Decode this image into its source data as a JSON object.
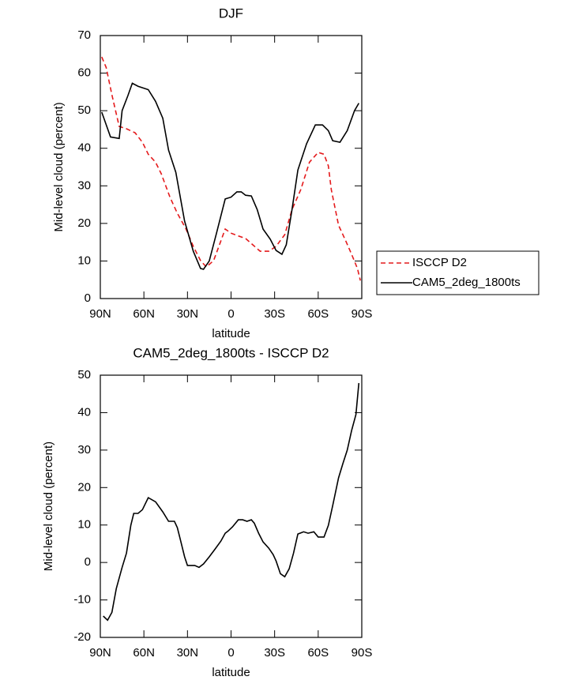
{
  "chart_data": [
    {
      "type": "line",
      "title": "DJF",
      "x_label": "latitude",
      "y_label": "Mid-level cloud (percent)",
      "xlim": [
        90,
        -90
      ],
      "ylim": [
        0,
        70
      ],
      "xticks": [
        {
          "value": 90,
          "label": "90N"
        },
        {
          "value": 60,
          "label": "60N"
        },
        {
          "value": 30,
          "label": "30N"
        },
        0,
        {
          "value": -30,
          "label": "30S"
        },
        {
          "value": -60,
          "label": "60S"
        },
        {
          "value": -90,
          "label": "90S"
        }
      ],
      "yticks": [
        0,
        10,
        20,
        30,
        40,
        50,
        60,
        70
      ],
      "legend": "outside-right",
      "series": [
        {
          "name": "ISCCP D2",
          "color": "#e41a1c",
          "linestyle": "dashed",
          "x": [
            89,
            86,
            82,
            77,
            72,
            66,
            61,
            57,
            52,
            48,
            42,
            37,
            31,
            26,
            21,
            17,
            12,
            8,
            4,
            0,
            -4,
            -10,
            -15,
            -20,
            -26,
            -31,
            -37,
            -42,
            -48,
            -54,
            -60,
            -64,
            -67,
            -69,
            -74,
            -79,
            -83,
            -87,
            -89
          ],
          "values": [
            64.3,
            61.5,
            54.2,
            45.8,
            45.2,
            44.1,
            41.6,
            38.4,
            36.3,
            33.2,
            26.9,
            22.7,
            18.5,
            13.9,
            10.1,
            8.4,
            10.1,
            14.3,
            18.5,
            17.4,
            16.8,
            16,
            14.3,
            12.6,
            12.6,
            13.9,
            17,
            23.7,
            29,
            36.3,
            38.9,
            38.4,
            35.3,
            29,
            19.5,
            15.3,
            11.8,
            8,
            4.8
          ]
        },
        {
          "name": "CAM5_2deg_1800ts",
          "color": "#000000",
          "linestyle": "solid",
          "x": [
            89,
            83,
            77,
            75,
            71,
            68,
            64,
            57,
            52,
            47,
            43,
            38,
            32,
            26,
            21,
            19,
            15,
            10,
            4,
            0,
            -4,
            -7,
            -10,
            -14,
            -18,
            -22,
            -27,
            -31,
            -35,
            -38,
            -42,
            -46,
            -52,
            -58,
            -63,
            -67,
            -70,
            -75,
            -80,
            -85,
            -88
          ],
          "values": [
            49.6,
            43,
            42.6,
            50,
            54,
            57.3,
            56.5,
            55.6,
            52.5,
            48,
            39.5,
            33.6,
            20.6,
            12.6,
            8,
            7.8,
            10,
            17.4,
            26.5,
            27,
            28.4,
            28.4,
            27.5,
            27.3,
            23.7,
            18.5,
            15.8,
            12.8,
            11.8,
            14.3,
            23.7,
            34.2,
            41.2,
            46.2,
            46.2,
            44.7,
            42,
            41.6,
            44.7,
            50,
            52
          ]
        }
      ]
    },
    {
      "type": "line",
      "title": "CAM5_2deg_1800ts - ISCCP D2",
      "x_label": "latitude",
      "y_label": "Mid-level cloud (percent)",
      "xlim": [
        90,
        -90
      ],
      "ylim": [
        -20,
        50
      ],
      "xticks": [
        {
          "value": 90,
          "label": "90N"
        },
        {
          "value": 60,
          "label": "60N"
        },
        {
          "value": 30,
          "label": "30N"
        },
        0,
        {
          "value": -30,
          "label": "30S"
        },
        {
          "value": -60,
          "label": "60S"
        },
        {
          "value": -90,
          "label": "90S"
        }
      ],
      "yticks": [
        -20,
        -10,
        0,
        10,
        20,
        30,
        40,
        50
      ],
      "series": [
        {
          "color": "#000000",
          "linestyle": "solid",
          "x": [
            88,
            85,
            82,
            79,
            75,
            72,
            69,
            67,
            64,
            61,
            57,
            52,
            47,
            43,
            39,
            37,
            35,
            32,
            30,
            25,
            22,
            19,
            15,
            11,
            7,
            4,
            2,
            -1,
            -5,
            -8,
            -11,
            -14,
            -16,
            -19,
            -22,
            -26,
            -29,
            -31,
            -34,
            -37,
            -40,
            -43,
            -46,
            -50,
            -53,
            -57,
            -60,
            -64,
            -67,
            -70,
            -74,
            -77,
            -80,
            -83,
            -86,
            -88
          ],
          "values": [
            -14.3,
            -15.4,
            -13.3,
            -7,
            -1.3,
            2.5,
            9.9,
            13.1,
            13.1,
            14.1,
            17.3,
            16.2,
            13.5,
            11,
            11,
            9.3,
            6.3,
            1.5,
            -0.8,
            -0.8,
            -1.3,
            -0.4,
            1.5,
            3.6,
            5.7,
            7.8,
            8.4,
            9.5,
            11.4,
            11.4,
            11,
            11.4,
            10.5,
            7.8,
            5.5,
            3.8,
            2.1,
            0.4,
            -3,
            -3.8,
            -1.7,
            2.5,
            7.6,
            8.2,
            7.8,
            8.2,
            6.8,
            6.8,
            9.9,
            15.2,
            22.6,
            26.4,
            30,
            35.2,
            39.5,
            47.9
          ]
        }
      ]
    }
  ]
}
